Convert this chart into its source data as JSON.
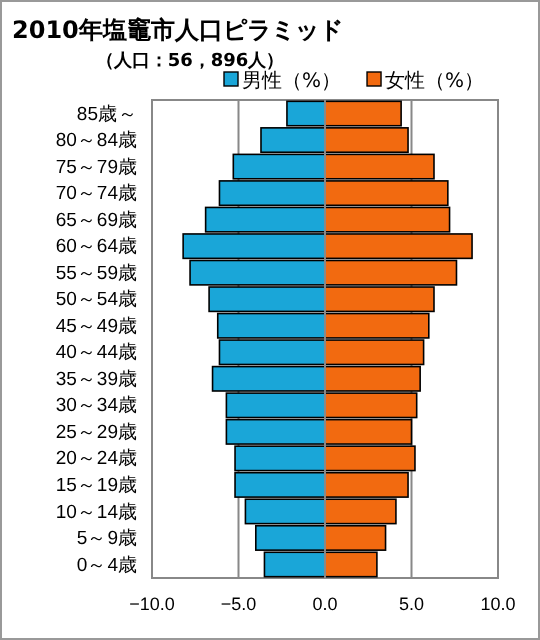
{
  "chart_data": {
    "type": "bar",
    "orientation": "horizontal",
    "stacked": true,
    "title": "2010年塩竈市人口ピラミッド",
    "subtitle": "（人口：56，896人）",
    "categories": [
      "85歳～",
      "80～84歳",
      "75～79歳",
      "70～74歳",
      "65～69歳",
      "60～64歳",
      "55～59歳",
      "50～54歳",
      "45～49歳",
      "40～44歳",
      "35～39歳",
      "30～34歳",
      "25～29歳",
      "20～24歳",
      "15～19歳",
      "10～14歳",
      "5～9歳",
      "0～4歳"
    ],
    "series": [
      {
        "name": "男性（%）",
        "color": "#1aa6d8",
        "values": [
          -2.2,
          -3.7,
          -5.3,
          -6.1,
          -6.9,
          -8.2,
          -7.8,
          -6.7,
          -6.2,
          -6.1,
          -6.5,
          -5.7,
          -5.7,
          -5.2,
          -5.2,
          -4.6,
          -4.0,
          -3.5
        ]
      },
      {
        "name": "女性（%）",
        "color": "#f26a10",
        "values": [
          4.4,
          4.8,
          6.3,
          7.1,
          7.2,
          8.5,
          7.6,
          6.3,
          6.0,
          5.7,
          5.5,
          5.3,
          5.0,
          5.2,
          4.8,
          4.1,
          3.5,
          3.0
        ]
      }
    ],
    "xlim": [
      -10,
      10
    ],
    "xticks": [
      {
        "value": -10,
        "label": "−10.0"
      },
      {
        "value": -5,
        "label": "−5.0"
      },
      {
        "value": 0,
        "label": "0.0"
      },
      {
        "value": 5,
        "label": "5.0"
      },
      {
        "value": 10,
        "label": "10.0"
      }
    ],
    "grid": "x",
    "legend": "top"
  }
}
